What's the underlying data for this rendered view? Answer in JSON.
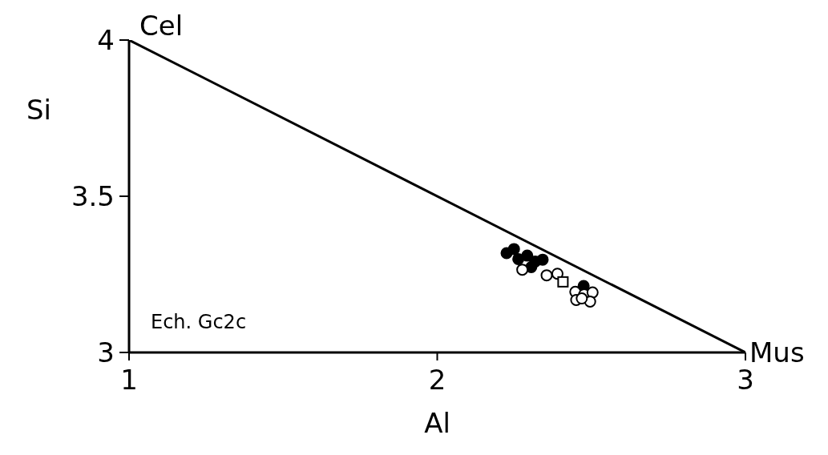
{
  "chart_data": {
    "type": "scatter",
    "xlabel": "Al",
    "ylabel": "Si",
    "xlim": [
      1,
      3
    ],
    "ylim": [
      3,
      4
    ],
    "xticks": [
      1,
      2,
      3
    ],
    "yticks": [
      3,
      3.5,
      4
    ],
    "grid": false,
    "legend": false,
    "annotations": [
      {
        "text": "Cel",
        "x": 1,
        "y": 4
      },
      {
        "text": "Mus",
        "x": 3,
        "y": 3
      },
      "Ech. Gc2c"
    ],
    "series": [
      {
        "type": "line",
        "color": "#000000",
        "x": [
          1,
          3
        ],
        "values": [
          4,
          3
        ],
        "marker": "none",
        "line_style": "solid"
      },
      {
        "color": "#000000",
        "marker": "circle",
        "x": [
          2.225,
          2.249,
          2.263,
          2.292,
          2.305,
          2.318,
          2.342,
          2.475
        ],
        "values": [
          3.318,
          3.331,
          3.299,
          3.31,
          3.273,
          3.291,
          3.297,
          3.213
        ]
      },
      {
        "color": "#ffffff",
        "marker": "circle",
        "x": [
          2.276,
          2.355,
          2.39,
          2.448,
          2.477,
          2.504,
          2.451,
          2.496,
          2.469
        ],
        "values": [
          3.265,
          3.247,
          3.252,
          3.194,
          3.186,
          3.192,
          3.168,
          3.163,
          3.173
        ]
      },
      {
        "color": "#ffffff",
        "marker": "square",
        "x": [
          2.408
        ],
        "values": [
          3.226
        ]
      }
    ]
  }
}
